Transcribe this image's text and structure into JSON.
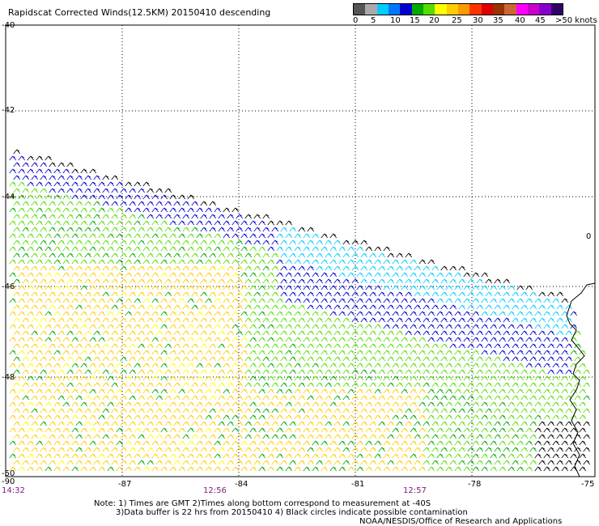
{
  "title": "Rapidscat Corrected Winds(12.5KM) 20150410 descending",
  "colorbar": {
    "colors": [
      "#555555",
      "#aaaaaa",
      "#00ccff",
      "#0077ff",
      "#0000cc",
      "#00aa00",
      "#55dd00",
      "#ffff00",
      "#ffcc00",
      "#ff9900",
      "#ff3300",
      "#dd0000",
      "#993300",
      "#cc6633",
      "#ff00ff",
      "#cc00cc",
      "#8800cc",
      "#330066"
    ],
    "labels": [
      "0",
      "5",
      "10",
      "15",
      "20",
      "25",
      "30",
      "35",
      "40",
      "45",
      ">50 knots"
    ]
  },
  "map": {
    "lon_range": [
      -90,
      -75
    ],
    "lat_range": [
      -50,
      -40
    ],
    "lon_ticks": [
      "-90",
      "-87",
      "-84",
      "-81",
      "-78",
      "-75"
    ],
    "lat_ticks": [
      "-40",
      "-42",
      "-44",
      "-46",
      "-48",
      "-50"
    ],
    "times": [
      "14:32",
      "12:56",
      "12:57"
    ],
    "coast_label": "0"
  },
  "notes": {
    "line1": "Note: 1) Times are GMT 2)Times along bottom correspond to measurement at -40S",
    "line2": "3)Data buffer is 22 hrs from 20150410 4) Black circles indicate possible contamination",
    "credit": "NOAA/NESDIS/Office of Research and Applications"
  }
}
